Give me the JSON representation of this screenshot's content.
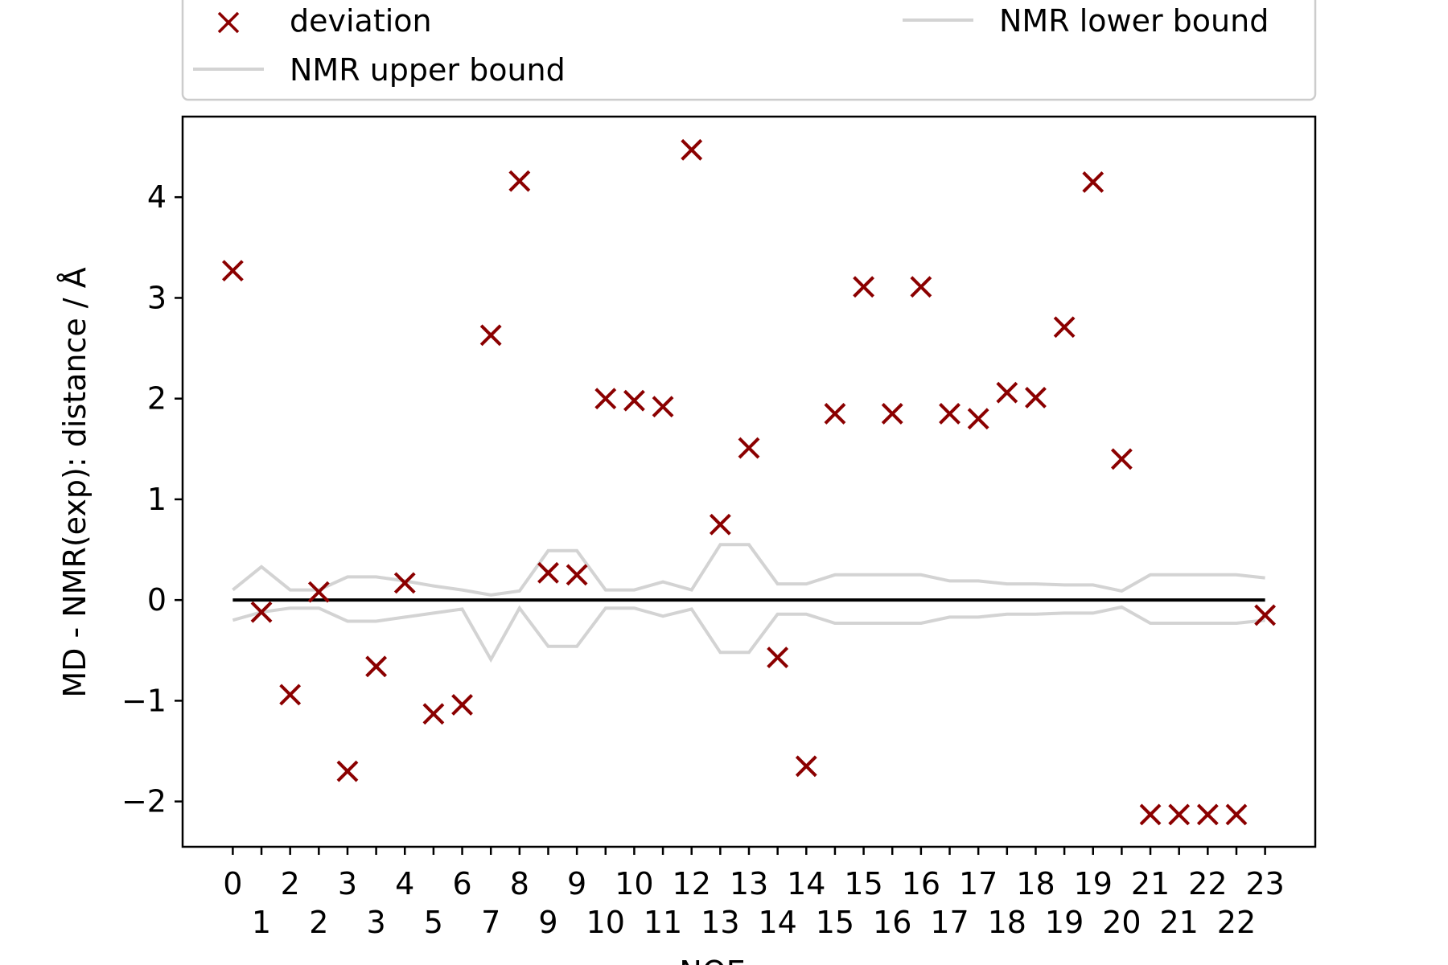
{
  "chart_data": {
    "type": "scatter",
    "title": "",
    "xlabel": "NOE no.",
    "ylabel": "MD - NMR(exp): distance / Å",
    "ylim": [
      -2.45,
      4.8
    ],
    "xlim": [
      -1.75,
      37.75
    ],
    "grid": false,
    "legend_position": "top",
    "x": [
      0,
      1,
      2,
      3,
      4,
      5,
      6,
      7,
      8,
      9,
      10,
      11,
      12,
      13,
      14,
      15,
      16,
      17,
      18,
      19,
      20,
      21,
      22,
      23,
      24,
      25,
      26,
      27,
      28,
      29,
      30,
      31,
      32,
      33,
      34,
      35,
      36
    ],
    "x_tick_labels": [
      "0",
      "1",
      "2",
      "2",
      "3",
      "3",
      "4",
      "5",
      "6",
      "7",
      "8",
      "9",
      "9",
      "10",
      "10",
      "11",
      "12",
      "13",
      "13",
      "14",
      "14",
      "15",
      "15",
      "16",
      "16",
      "17",
      "17",
      "18",
      "18",
      "19",
      "19",
      "20",
      "21",
      "21",
      "22",
      "22",
      "23"
    ],
    "series": [
      {
        "name": "deviation",
        "kind": "markers",
        "color": "#8b0000",
        "values": [
          3.27,
          -0.12,
          -0.94,
          0.08,
          -1.7,
          -0.66,
          0.17,
          -1.13,
          -1.04,
          2.63,
          4.16,
          0.27,
          0.25,
          2.0,
          1.98,
          1.92,
          4.47,
          0.75,
          1.51,
          -0.57,
          -1.65,
          1.85,
          3.11,
          1.85,
          3.11,
          1.85,
          1.8,
          2.06,
          2.01,
          2.71,
          4.15,
          1.4,
          -2.13,
          -2.13,
          -2.13,
          -2.13,
          -0.15
        ]
      },
      {
        "name": "NMR upper bound",
        "kind": "line",
        "color": "#d3d3d3",
        "values": [
          0.1,
          0.33,
          0.1,
          0.1,
          0.23,
          0.23,
          0.19,
          0.14,
          0.1,
          0.05,
          0.09,
          0.49,
          0.49,
          0.1,
          0.1,
          0.18,
          0.1,
          0.55,
          0.55,
          0.16,
          0.16,
          0.25,
          0.25,
          0.25,
          0.25,
          0.19,
          0.19,
          0.16,
          0.16,
          0.15,
          0.15,
          0.09,
          0.25,
          0.25,
          0.25,
          0.25,
          0.22
        ]
      },
      {
        "name": "NMR lower bound",
        "kind": "line",
        "color": "#d3d3d3",
        "values": [
          -0.2,
          -0.12,
          -0.08,
          -0.08,
          -0.21,
          -0.21,
          -0.17,
          -0.13,
          -0.09,
          -0.59,
          -0.08,
          -0.46,
          -0.46,
          -0.08,
          -0.08,
          -0.16,
          -0.09,
          -0.52,
          -0.52,
          -0.14,
          -0.14,
          -0.23,
          -0.23,
          -0.23,
          -0.23,
          -0.17,
          -0.17,
          -0.14,
          -0.14,
          -0.13,
          -0.13,
          -0.07,
          -0.23,
          -0.23,
          -0.23,
          -0.23,
          -0.2
        ]
      }
    ],
    "reference_line": {
      "y": 0,
      "color": "#000000"
    },
    "y_ticks": [
      {
        "value": -2,
        "label": "−2"
      },
      {
        "value": -1,
        "label": "−1"
      },
      {
        "value": 0,
        "label": "0"
      },
      {
        "value": 1,
        "label": "1"
      },
      {
        "value": 2,
        "label": "2"
      },
      {
        "value": 3,
        "label": "3"
      },
      {
        "value": 4,
        "label": "4"
      }
    ]
  }
}
